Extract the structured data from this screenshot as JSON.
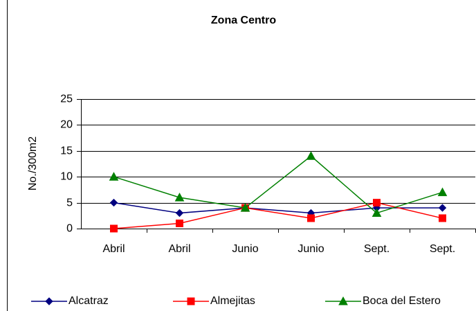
{
  "chart_data": {
    "type": "line",
    "title": "Zona Centro",
    "y_label": "No./300m2",
    "categories": [
      "Abril",
      "Abril",
      "Junio",
      "Junio",
      "Sept.",
      "Sept."
    ],
    "series": [
      {
        "name": "Alcatraz",
        "color": "#000080",
        "marker": "diamond",
        "values": [
          5,
          3,
          4,
          3,
          4,
          4
        ]
      },
      {
        "name": "Almejitas",
        "color": "#ff0000",
        "marker": "square",
        "values": [
          0,
          1,
          4,
          2,
          5,
          2
        ]
      },
      {
        "name": "Boca del Estero",
        "color": "#008000",
        "marker": "triangle",
        "values": [
          10,
          6,
          4,
          14,
          3,
          7
        ]
      }
    ],
    "ylim": [
      0,
      25
    ],
    "yticks": [
      0,
      5,
      10,
      15,
      20,
      25
    ],
    "grid": true,
    "legend": "bottom"
  }
}
